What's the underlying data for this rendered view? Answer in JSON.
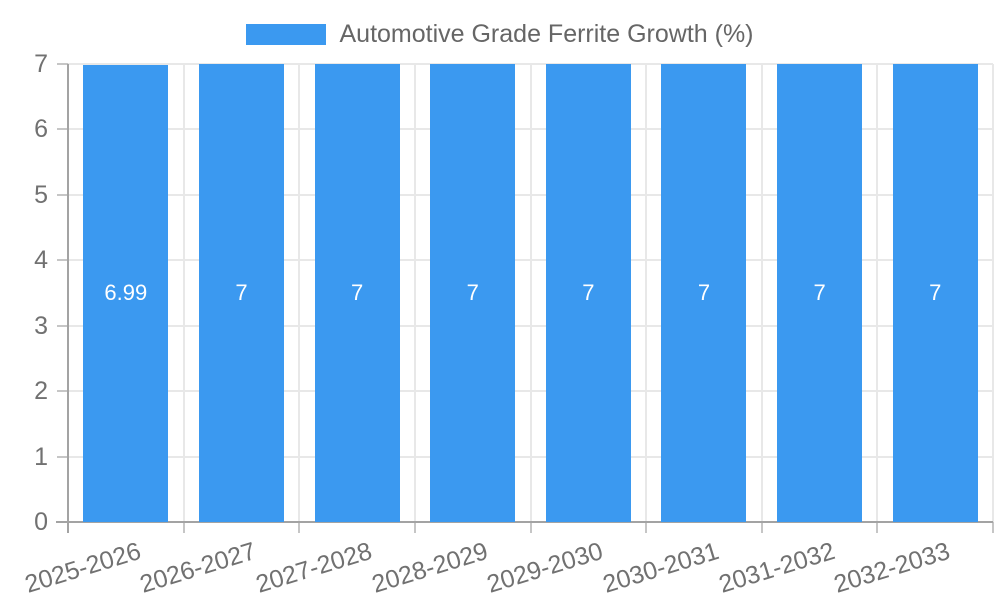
{
  "legend": {
    "label": "Automotive Grade Ferrite Growth (%)"
  },
  "colors": {
    "bar": "#3B99F0",
    "grid": "#e8e8e8",
    "axis": "#a3a3a3",
    "tick": "#c6c6c6",
    "tick_label": "#717171",
    "legend_text": "#666666",
    "datalabel": "#ffffff",
    "background": "#ffffff"
  },
  "chart_data": {
    "type": "bar",
    "title": "",
    "xlabel": "",
    "ylabel": "",
    "categories": [
      "2025-2026",
      "2026-2027",
      "2027-2028",
      "2028-2029",
      "2029-2030",
      "2030-2031",
      "2031-2032",
      "2032-2033"
    ],
    "series": [
      {
        "name": "Automotive Grade Ferrite Growth (%)",
        "values": [
          6.99,
          7,
          7,
          7,
          7,
          7,
          7,
          7
        ],
        "value_labels": [
          "6.99",
          "7",
          "7",
          "7",
          "7",
          "7",
          "7",
          "7"
        ]
      }
    ],
    "ylim": [
      0,
      7
    ],
    "yticks": [
      0,
      1,
      2,
      3,
      4,
      5,
      6,
      7
    ],
    "grid": true,
    "legend_position": "top",
    "x_tick_rotation_deg": 17
  }
}
